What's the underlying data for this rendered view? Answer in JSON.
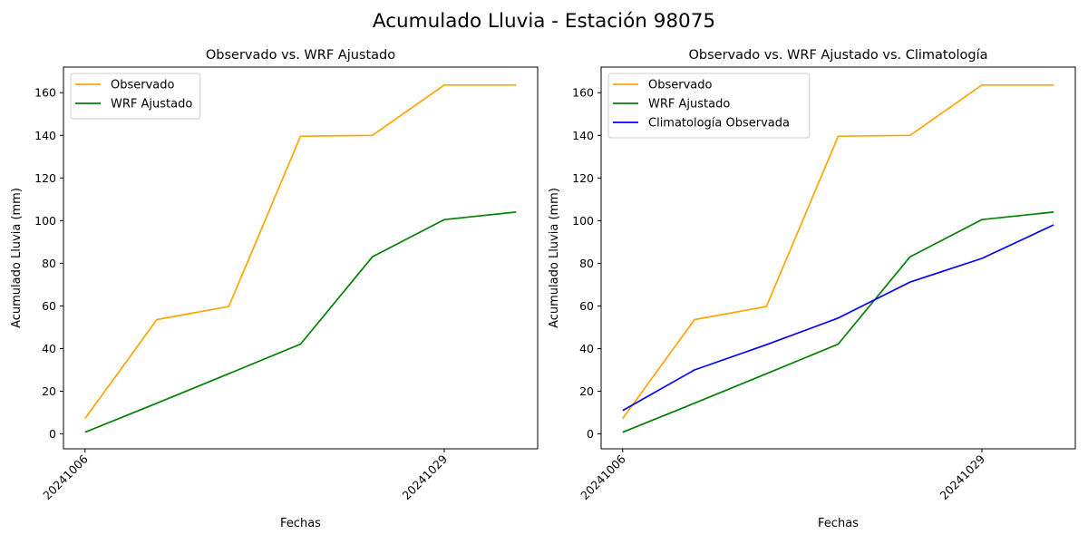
{
  "figure": {
    "suptitle": "Acumulado Lluvia - Estación 98075"
  },
  "colors": {
    "observado": "#FFA500",
    "wrf": "#008000",
    "climatologia": "#0000FF"
  },
  "chart_data": [
    {
      "type": "line",
      "title": "Observado vs. WRF Ajustado",
      "xlabel": "Fechas",
      "ylabel": "Acumulado Lluvia (mm)",
      "x": [
        0,
        1,
        2,
        3,
        4,
        5,
        6
      ],
      "xtick_positions": [
        0,
        5
      ],
      "xtick_labels": [
        "20241006",
        "20241029"
      ],
      "xlim": [
        -0.3,
        6.3
      ],
      "ylim": [
        -7,
        172
      ],
      "yticks": [
        0,
        20,
        40,
        60,
        80,
        100,
        120,
        140,
        160
      ],
      "grid": false,
      "legend": "top-left",
      "series": [
        {
          "name": "Observado",
          "color": "#FFA500",
          "values": [
            7.2,
            53.6,
            59.7,
            139.6,
            140.0,
            163.6,
            163.6
          ]
        },
        {
          "name": "WRF Ajustado",
          "color": "#008000",
          "values": [
            0.8,
            14.4,
            28.2,
            42.1,
            83.0,
            100.5,
            104.0
          ]
        }
      ]
    },
    {
      "type": "line",
      "title": "Observado vs. WRF Ajustado vs. Climatología",
      "xlabel": "Fechas",
      "ylabel": "Acumulado Lluvia (mm)",
      "x": [
        0,
        1,
        2,
        3,
        4,
        5,
        6
      ],
      "xtick_positions": [
        0,
        5
      ],
      "xtick_labels": [
        "20241006",
        "20241029"
      ],
      "xlim": [
        -0.3,
        6.3
      ],
      "ylim": [
        -7,
        172
      ],
      "yticks": [
        0,
        20,
        40,
        60,
        80,
        100,
        120,
        140,
        160
      ],
      "grid": false,
      "legend": "top-left",
      "series": [
        {
          "name": "Observado",
          "color": "#FFA500",
          "values": [
            7.2,
            53.6,
            59.7,
            139.6,
            140.0,
            163.6,
            163.6
          ]
        },
        {
          "name": "WRF Ajustado",
          "color": "#008000",
          "values": [
            0.8,
            14.4,
            28.2,
            42.1,
            83.0,
            100.5,
            104.0
          ]
        },
        {
          "name": "Climatología Observada",
          "color": "#0000FF",
          "values": [
            11.0,
            30.0,
            41.8,
            54.3,
            71.2,
            82.3,
            98.0
          ]
        }
      ]
    }
  ]
}
